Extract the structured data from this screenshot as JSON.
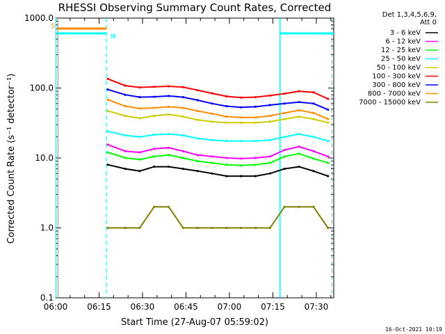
{
  "chart_data": {
    "type": "line",
    "title": "RHESSI Observing Summary Count Rates, Corrected",
    "xlabel": "Start Time (27-Aug-07 05:59:02)",
    "ylabel": "Corrected Count Rate (s⁻¹ detector⁻¹)",
    "yscale": "log",
    "ylim": [
      0.1,
      1000
    ],
    "xlim_minutes": [
      0.98,
      97.0
    ],
    "x_ticks": [
      {
        "label": "06:00",
        "minutes": 0.98
      },
      {
        "label": "06:15",
        "minutes": 15.98
      },
      {
        "label": "06:30",
        "minutes": 30.98
      },
      {
        "label": "06:45",
        "minutes": 45.98
      },
      {
        "label": "07:00",
        "minutes": 60.98
      },
      {
        "label": "07:15",
        "minutes": 75.98
      },
      {
        "label": "07:30",
        "minutes": 90.98
      }
    ],
    "y_ticks": [
      {
        "label": "1000.0",
        "value": 1000
      },
      {
        "label": "100.0",
        "value": 100
      },
      {
        "label": "10.0",
        "value": 10
      },
      {
        "label": "1.0",
        "value": 1
      },
      {
        "label": "0.1",
        "value": 0.1
      }
    ],
    "legend_header": [
      "Det 1,3,4,5,6,9,",
      "Att 0"
    ],
    "legend_position": "right",
    "series_x_minutes": [
      19,
      25,
      30,
      35,
      40,
      45,
      50,
      55,
      60,
      65,
      70,
      75,
      80,
      85,
      90,
      95
    ],
    "series": [
      {
        "name": "3 - 6 keV",
        "color": "#000000",
        "values": [
          8,
          7,
          6.5,
          7.5,
          7.5,
          7,
          6.5,
          6,
          5.5,
          5.5,
          5.5,
          6,
          7,
          7.5,
          6.5,
          5.5
        ]
      },
      {
        "name": "6 - 12 keV",
        "color": "#ff00ff",
        "values": [
          15.5,
          12.5,
          12,
          13.5,
          14,
          12.5,
          11,
          10.5,
          10,
          9.8,
          10,
          10.5,
          13,
          14.5,
          12.5,
          10.5
        ]
      },
      {
        "name": "12 - 25 keV",
        "color": "#00ff00",
        "values": [
          12,
          10,
          9.5,
          10.5,
          11,
          10,
          9,
          8.5,
          8,
          7.8,
          8,
          8.5,
          10.5,
          11.5,
          9.8,
          8.5
        ]
      },
      {
        "name": "25 - 50 keV",
        "color": "#00ffff",
        "values": [
          24,
          21,
          20,
          21.5,
          22,
          21,
          19,
          18,
          17.5,
          17.5,
          17.5,
          18,
          20,
          22,
          20,
          17.5
        ]
      },
      {
        "name": "50 - 100 keV",
        "color": "#cccc00",
        "values": [
          47,
          40,
          37,
          40,
          42,
          39,
          35,
          33,
          32,
          32,
          32,
          33,
          36,
          39,
          36,
          32
        ]
      },
      {
        "name": "100 - 300 keV",
        "color": "#ff0000",
        "values": [
          135,
          108,
          102,
          104,
          106,
          103,
          93,
          84,
          76,
          73,
          74,
          78,
          83,
          90,
          87,
          70
        ]
      },
      {
        "name": "300 - 800 keV",
        "color": "#0000ff",
        "values": [
          95,
          80,
          74,
          75,
          77,
          74,
          67,
          60,
          55,
          53,
          54,
          57,
          60,
          63,
          60,
          49
        ]
      },
      {
        "name": "800 - 7000 keV",
        "color": "#ff8c00",
        "values": [
          68,
          55,
          51,
          52,
          54,
          52,
          47,
          43,
          39,
          38,
          38,
          40,
          44,
          48,
          44,
          36
        ]
      },
      {
        "name": "7000 - 15000 keV",
        "color": "#808000",
        "values": [
          1,
          1,
          1,
          2,
          2,
          1,
          1,
          1,
          1,
          1,
          1,
          1,
          2,
          2,
          2,
          1
        ]
      }
    ],
    "flag_bars": [
      {
        "label": "S",
        "color": "#ff8c00",
        "x_start_minutes": 1.5,
        "x_end_minutes": 18.5
      },
      {
        "label": "N",
        "color": "#00ffff",
        "x_start_minutes": 1.5,
        "x_end_minutes": 18.5
      },
      {
        "label": "",
        "color": "#00ffff",
        "x_start_minutes": 78.5,
        "x_end_minutes": 97.0
      }
    ],
    "vertical_markers": [
      {
        "minutes": 1.0,
        "color": "#00ffff",
        "style": "solid"
      },
      {
        "minutes": 1.8,
        "color": "#ff8c00",
        "style": "solid"
      },
      {
        "minutes": 18.5,
        "color": "#00ffff",
        "style": "dashed"
      },
      {
        "minutes": 78.4,
        "color": "#00ffff",
        "style": "solid"
      },
      {
        "minutes": 96.4,
        "color": "#00ffff",
        "style": "dashed"
      }
    ]
  },
  "footer_timestamp": "16-Oct-2021 10:19"
}
